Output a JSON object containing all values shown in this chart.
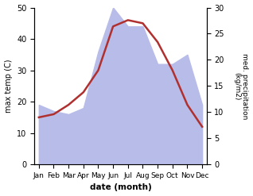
{
  "months": [
    "Jan",
    "Feb",
    "Mar",
    "Apr",
    "May",
    "Jun",
    "Jul",
    "Aug",
    "Sep",
    "Oct",
    "Nov",
    "Dec"
  ],
  "temp_values": [
    15,
    16,
    19,
    23,
    30,
    44,
    46,
    45,
    39,
    30,
    19,
    12
  ],
  "precip_values_left_scale": [
    19,
    17,
    16,
    18,
    36,
    50,
    44,
    44,
    32,
    32,
    35,
    19
  ],
  "temp_color": "#b03030",
  "precip_fill_color": "#b8bce8",
  "temp_ylim": [
    0,
    50
  ],
  "precip_ylim": [
    0,
    30
  ],
  "xlabel": "date (month)",
  "ylabel_left": "max temp (C)",
  "ylabel_right": "med. precipitation\n(kg/m2)",
  "figsize": [
    3.18,
    2.47
  ],
  "dpi": 100
}
